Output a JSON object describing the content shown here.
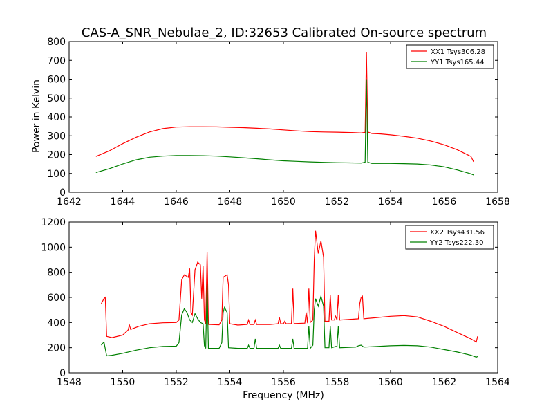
{
  "chart_data": [
    {
      "type": "line",
      "title": "CAS-A_SNR_Nebulae_2, ID:32653 Calibrated On-source spectrum",
      "xlabel": "",
      "ylabel": "Power in Kelvin",
      "xlim": [
        1642,
        1658
      ],
      "ylim": [
        0,
        800
      ],
      "xticks": [
        "1642",
        "1644",
        "1646",
        "1648",
        "1650",
        "1652",
        "1654",
        "1656",
        "1658"
      ],
      "yticks": [
        "0",
        "100",
        "200",
        "300",
        "400",
        "500",
        "600",
        "700",
        "800"
      ],
      "legend_position": "top-right",
      "series": [
        {
          "name": "XX1 Tsys306.28",
          "color": "#ff0000",
          "points": [
            [
              1643.0,
              190
            ],
            [
              1643.5,
              220
            ],
            [
              1644.0,
              258
            ],
            [
              1644.5,
              292
            ],
            [
              1645.0,
              320
            ],
            [
              1645.5,
              338
            ],
            [
              1646.0,
              346
            ],
            [
              1646.5,
              348
            ],
            [
              1647.0,
              348
            ],
            [
              1647.5,
              347
            ],
            [
              1648.0,
              345
            ],
            [
              1648.5,
              343
            ],
            [
              1649.0,
              340
            ],
            [
              1649.5,
              336
            ],
            [
              1650.0,
              331
            ],
            [
              1650.5,
              326
            ],
            [
              1651.0,
              322
            ],
            [
              1651.5,
              320
            ],
            [
              1652.0,
              319
            ],
            [
              1652.5,
              317
            ],
            [
              1652.9,
              315
            ],
            [
              1653.05,
              318
            ],
            [
              1653.1,
              745
            ],
            [
              1653.15,
              320
            ],
            [
              1653.3,
              312
            ],
            [
              1653.6,
              310
            ],
            [
              1654.0,
              305
            ],
            [
              1654.5,
              297
            ],
            [
              1655.0,
              287
            ],
            [
              1655.5,
              272
            ],
            [
              1656.0,
              252
            ],
            [
              1656.5,
              225
            ],
            [
              1657.0,
              190
            ],
            [
              1657.1,
              162
            ]
          ]
        },
        {
          "name": "YY1 Tsys165.44",
          "color": "#008000",
          "points": [
            [
              1643.0,
              105
            ],
            [
              1643.5,
              125
            ],
            [
              1644.0,
              150
            ],
            [
              1644.5,
              172
            ],
            [
              1645.0,
              186
            ],
            [
              1645.5,
              192
            ],
            [
              1646.0,
              195
            ],
            [
              1646.5,
              195
            ],
            [
              1647.0,
              194
            ],
            [
              1647.5,
              192
            ],
            [
              1648.0,
              188
            ],
            [
              1648.5,
              183
            ],
            [
              1649.0,
              178
            ],
            [
              1649.5,
              172
            ],
            [
              1650.0,
              167
            ],
            [
              1650.5,
              164
            ],
            [
              1651.0,
              161
            ],
            [
              1651.5,
              159
            ],
            [
              1652.0,
              157
            ],
            [
              1652.5,
              156
            ],
            [
              1652.9,
              155
            ],
            [
              1653.05,
              160
            ],
            [
              1653.1,
              600
            ],
            [
              1653.15,
              160
            ],
            [
              1653.3,
              153
            ],
            [
              1654.0,
              153
            ],
            [
              1654.5,
              152
            ],
            [
              1655.0,
              150
            ],
            [
              1655.5,
              145
            ],
            [
              1656.0,
              135
            ],
            [
              1656.5,
              118
            ],
            [
              1657.0,
              98
            ],
            [
              1657.1,
              92
            ]
          ]
        }
      ]
    },
    {
      "type": "line",
      "title": "",
      "xlabel": "Frequency (MHz)",
      "ylabel": "",
      "xlim": [
        1548,
        1564
      ],
      "ylim": [
        0,
        1200
      ],
      "xticks": [
        "1548",
        "1550",
        "1552",
        "1554",
        "1556",
        "1558",
        "1560",
        "1562",
        "1564"
      ],
      "yticks": [
        "0",
        "200",
        "400",
        "600",
        "800",
        "1000",
        "1200"
      ],
      "legend_position": "top-right",
      "series": [
        {
          "name": "XX2 Tsys431.56",
          "color": "#ff0000",
          "points": [
            [
              1549.2,
              550
            ],
            [
              1549.3,
              590
            ],
            [
              1549.35,
              600
            ],
            [
              1549.4,
              290
            ],
            [
              1549.6,
              280
            ],
            [
              1550.0,
              300
            ],
            [
              1550.2,
              340
            ],
            [
              1550.25,
              380
            ],
            [
              1550.3,
              345
            ],
            [
              1550.6,
              370
            ],
            [
              1551.0,
              390
            ],
            [
              1551.5,
              398
            ],
            [
              1552.0,
              400
            ],
            [
              1552.1,
              420
            ],
            [
              1552.2,
              740
            ],
            [
              1552.3,
              780
            ],
            [
              1552.45,
              760
            ],
            [
              1552.5,
              830
            ],
            [
              1552.55,
              480
            ],
            [
              1552.6,
              460
            ],
            [
              1552.7,
              820
            ],
            [
              1552.8,
              880
            ],
            [
              1552.9,
              860
            ],
            [
              1552.95,
              590
            ],
            [
              1553.0,
              850
            ],
            [
              1553.05,
              420
            ],
            [
              1553.1,
              390
            ],
            [
              1553.15,
              960
            ],
            [
              1553.2,
              385
            ],
            [
              1553.6,
              382
            ],
            [
              1553.7,
              420
            ],
            [
              1553.75,
              760
            ],
            [
              1553.9,
              780
            ],
            [
              1553.95,
              700
            ],
            [
              1554.0,
              390
            ],
            [
              1554.3,
              380
            ],
            [
              1554.65,
              385
            ],
            [
              1554.7,
              420
            ],
            [
              1554.75,
              385
            ],
            [
              1554.9,
              385
            ],
            [
              1554.95,
              420
            ],
            [
              1555.0,
              385
            ],
            [
              1555.5,
              385
            ],
            [
              1555.8,
              390
            ],
            [
              1555.85,
              440
            ],
            [
              1555.9,
              390
            ],
            [
              1556.0,
              390
            ],
            [
              1556.05,
              410
            ],
            [
              1556.1,
              390
            ],
            [
              1556.3,
              392
            ],
            [
              1556.35,
              670
            ],
            [
              1556.4,
              392
            ],
            [
              1556.8,
              395
            ],
            [
              1556.85,
              480
            ],
            [
              1556.9,
              395
            ],
            [
              1556.95,
              670
            ],
            [
              1557.0,
              400
            ],
            [
              1557.1,
              420
            ],
            [
              1557.15,
              900
            ],
            [
              1557.2,
              1130
            ],
            [
              1557.3,
              950
            ],
            [
              1557.4,
              1050
            ],
            [
              1557.5,
              920
            ],
            [
              1557.55,
              410
            ],
            [
              1557.7,
              410
            ],
            [
              1557.75,
              620
            ],
            [
              1557.8,
              420
            ],
            [
              1557.9,
              420
            ],
            [
              1557.95,
              450
            ],
            [
              1558.0,
              420
            ],
            [
              1558.05,
              620
            ],
            [
              1558.1,
              420
            ],
            [
              1558.8,
              430
            ],
            [
              1558.85,
              550
            ],
            [
              1558.9,
              600
            ],
            [
              1558.95,
              610
            ],
            [
              1559.0,
              430
            ],
            [
              1559.5,
              440
            ],
            [
              1560.0,
              450
            ],
            [
              1560.5,
              455
            ],
            [
              1561.0,
              445
            ],
            [
              1561.5,
              410
            ],
            [
              1562.0,
              370
            ],
            [
              1562.5,
              320
            ],
            [
              1563.0,
              270
            ],
            [
              1563.2,
              245
            ],
            [
              1563.25,
              290
            ]
          ]
        },
        {
          "name": "YY2 Tsys222.30",
          "color": "#008000",
          "points": [
            [
              1549.2,
              220
            ],
            [
              1549.3,
              245
            ],
            [
              1549.4,
              135
            ],
            [
              1549.6,
              140
            ],
            [
              1550.0,
              155
            ],
            [
              1550.5,
              180
            ],
            [
              1551.0,
              200
            ],
            [
              1551.5,
              210
            ],
            [
              1552.0,
              212
            ],
            [
              1552.1,
              240
            ],
            [
              1552.2,
              460
            ],
            [
              1552.3,
              510
            ],
            [
              1552.4,
              480
            ],
            [
              1552.5,
              420
            ],
            [
              1552.6,
              400
            ],
            [
              1552.7,
              470
            ],
            [
              1552.8,
              430
            ],
            [
              1552.9,
              400
            ],
            [
              1553.0,
              390
            ],
            [
              1553.05,
              215
            ],
            [
              1553.1,
              195
            ],
            [
              1553.15,
              710
            ],
            [
              1553.2,
              195
            ],
            [
              1553.6,
              195
            ],
            [
              1553.7,
              240
            ],
            [
              1553.75,
              480
            ],
            [
              1553.8,
              520
            ],
            [
              1553.9,
              480
            ],
            [
              1553.95,
              200
            ],
            [
              1554.3,
              195
            ],
            [
              1554.65,
              195
            ],
            [
              1554.7,
              220
            ],
            [
              1554.75,
              195
            ],
            [
              1554.9,
              195
            ],
            [
              1554.95,
              270
            ],
            [
              1555.0,
              195
            ],
            [
              1555.8,
              195
            ],
            [
              1555.85,
              220
            ],
            [
              1555.9,
              195
            ],
            [
              1556.3,
              195
            ],
            [
              1556.35,
              270
            ],
            [
              1556.4,
              195
            ],
            [
              1556.9,
              195
            ],
            [
              1556.95,
              370
            ],
            [
              1557.0,
              195
            ],
            [
              1557.1,
              220
            ],
            [
              1557.15,
              500
            ],
            [
              1557.2,
              590
            ],
            [
              1557.3,
              530
            ],
            [
              1557.4,
              610
            ],
            [
              1557.5,
              530
            ],
            [
              1557.55,
              200
            ],
            [
              1557.7,
              200
            ],
            [
              1557.75,
              370
            ],
            [
              1557.8,
              200
            ],
            [
              1557.95,
              210
            ],
            [
              1558.0,
              210
            ],
            [
              1558.05,
              370
            ],
            [
              1558.1,
              200
            ],
            [
              1558.7,
              205
            ],
            [
              1558.8,
              215
            ],
            [
              1558.9,
              220
            ],
            [
              1559.0,
              205
            ],
            [
              1559.5,
              210
            ],
            [
              1560.0,
              215
            ],
            [
              1560.5,
              218
            ],
            [
              1561.0,
              215
            ],
            [
              1561.5,
              205
            ],
            [
              1562.0,
              185
            ],
            [
              1562.5,
              165
            ],
            [
              1563.0,
              140
            ],
            [
              1563.2,
              125
            ],
            [
              1563.25,
              130
            ]
          ]
        }
      ]
    }
  ]
}
